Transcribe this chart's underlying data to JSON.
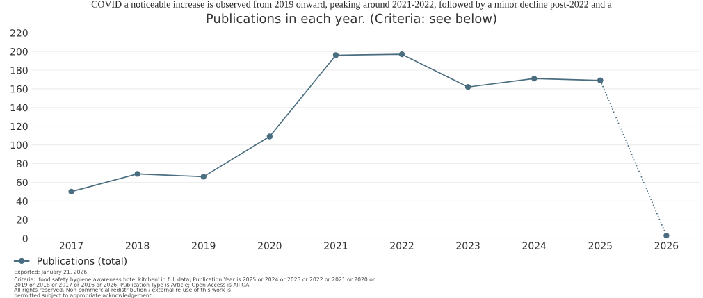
{
  "chart_data": {
    "type": "line",
    "subtitle": "COVID a noticeable increase is observed from 2019 onward, peaking around 2021-2022, followed by a minor decline post-2022 and a",
    "title": "Publications in each year. (Criteria: see below)",
    "categories": [
      "2017",
      "2018",
      "2019",
      "2020",
      "2021",
      "2022",
      "2023",
      "2024",
      "2025",
      "2026"
    ],
    "series": [
      {
        "name": "Publications (total)",
        "color": "#4a6d80",
        "values": [
          50,
          69,
          66,
          109,
          196,
          197,
          162,
          171,
          169,
          null
        ]
      },
      {
        "color": "#4a6d80",
        "line_style": "dotted",
        "values": [
          null,
          null,
          null,
          null,
          null,
          null,
          null,
          null,
          169,
          3
        ]
      }
    ],
    "ylim": [
      0,
      220
    ],
    "yticks": [
      0,
      20,
      40,
      60,
      80,
      100,
      120,
      140,
      160,
      180,
      200,
      220
    ],
    "grid": "y",
    "legend": "bottom left",
    "marker": "circle",
    "line_style": "solid",
    "annotations": [
      "Exported: January 21, 2026",
      "Criteria: 'food safety hygiene awareness hotel kitchen' in full data; Publication Year is 2025 or 2024 or 2023 or 2022 or 2021 or 2020 or\n2019 or 2018 or 2017 or 2016 or 2026; Publication Type is Article; Open Access is All OA.",
      "All rights reserved. Non-commercial redistribution / external re-use of this work is\npermitted subject to appropriate acknowledgement."
    ]
  }
}
